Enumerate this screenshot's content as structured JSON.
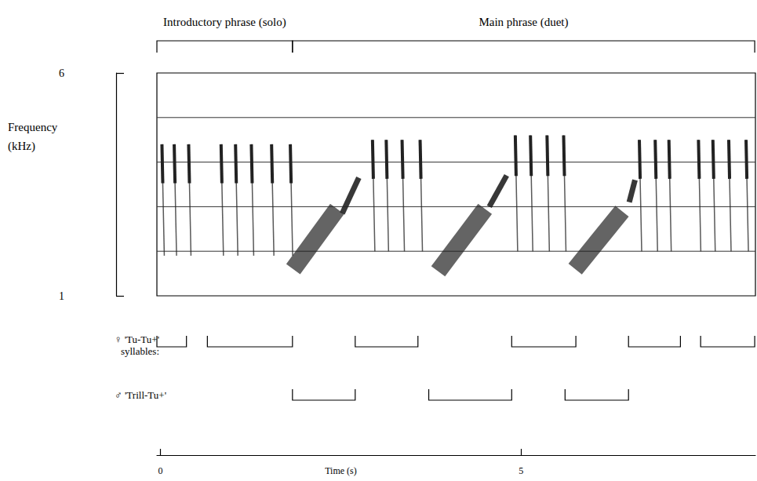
{
  "chart_data": {
    "type": "spectrogram",
    "color": "#222222",
    "phrases": [
      {
        "label": "Introductory phrase (solo)",
        "start": -0.05,
        "end": 1.83
      },
      {
        "label": "Main phrase (duet)",
        "start": 1.83,
        "end": 8.24
      }
    ],
    "ylabel": "Frequency (kHz)",
    "ylim": [
      1,
      6
    ],
    "yticks": [
      1,
      6
    ],
    "gridlines": [
      2,
      3,
      4,
      5
    ],
    "xlabel": "Time (s)",
    "xlim": [
      -0.05,
      8.25
    ],
    "xticks": [
      0,
      5
    ],
    "syllables": [
      {
        "label": "♀ 'Tu-Tu+' syllables:",
        "spans": [
          [
            -0.05,
            0.36
          ],
          [
            0.65,
            1.83
          ],
          [
            2.7,
            3.57
          ],
          [
            4.87,
            5.76
          ],
          [
            6.49,
            7.21
          ],
          [
            7.49,
            8.24
          ]
        ]
      },
      {
        "label": "♂ 'Trill-Tu+'",
        "spans": [
          [
            1.83,
            2.7
          ],
          [
            3.72,
            4.87
          ],
          [
            5.61,
            6.49
          ]
        ]
      }
    ],
    "tu_notes": [
      [
        0.02,
        4.4,
        1.9
      ],
      [
        0.19,
        4.4,
        1.9
      ],
      [
        0.39,
        4.4,
        1.9
      ],
      [
        0.84,
        4.4,
        1.9
      ],
      [
        1.04,
        4.4,
        1.9
      ],
      [
        1.26,
        4.4,
        1.9
      ],
      [
        1.54,
        4.4,
        1.9
      ],
      [
        1.8,
        4.4,
        1.9
      ],
      [
        2.94,
        4.5,
        2.0
      ],
      [
        3.13,
        4.5,
        2.0
      ],
      [
        3.35,
        4.5,
        2.0
      ],
      [
        3.6,
        4.5,
        2.0
      ],
      [
        4.92,
        4.6,
        2.0
      ],
      [
        5.13,
        4.6,
        2.0
      ],
      [
        5.36,
        4.6,
        2.0
      ],
      [
        5.59,
        4.6,
        2.0
      ],
      [
        6.64,
        4.5,
        2.0
      ],
      [
        6.86,
        4.5,
        2.0
      ],
      [
        7.05,
        4.5,
        2.0
      ],
      [
        7.46,
        4.5,
        2.0
      ],
      [
        7.66,
        4.5,
        2.0
      ],
      [
        7.88,
        4.5,
        2.0
      ],
      [
        8.12,
        4.5,
        2.0
      ]
    ],
    "ascents": [
      [
        2.52,
        2.85,
        2.75,
        3.65
      ],
      [
        4.56,
        3.0,
        4.8,
        3.7
      ],
      [
        6.5,
        3.1,
        6.58,
        3.6
      ]
    ],
    "trills": [
      [
        1.84,
        1.6,
        2.45,
        2.95
      ],
      [
        3.85,
        1.55,
        4.5,
        2.95
      ],
      [
        5.75,
        1.6,
        6.4,
        2.9
      ]
    ]
  }
}
